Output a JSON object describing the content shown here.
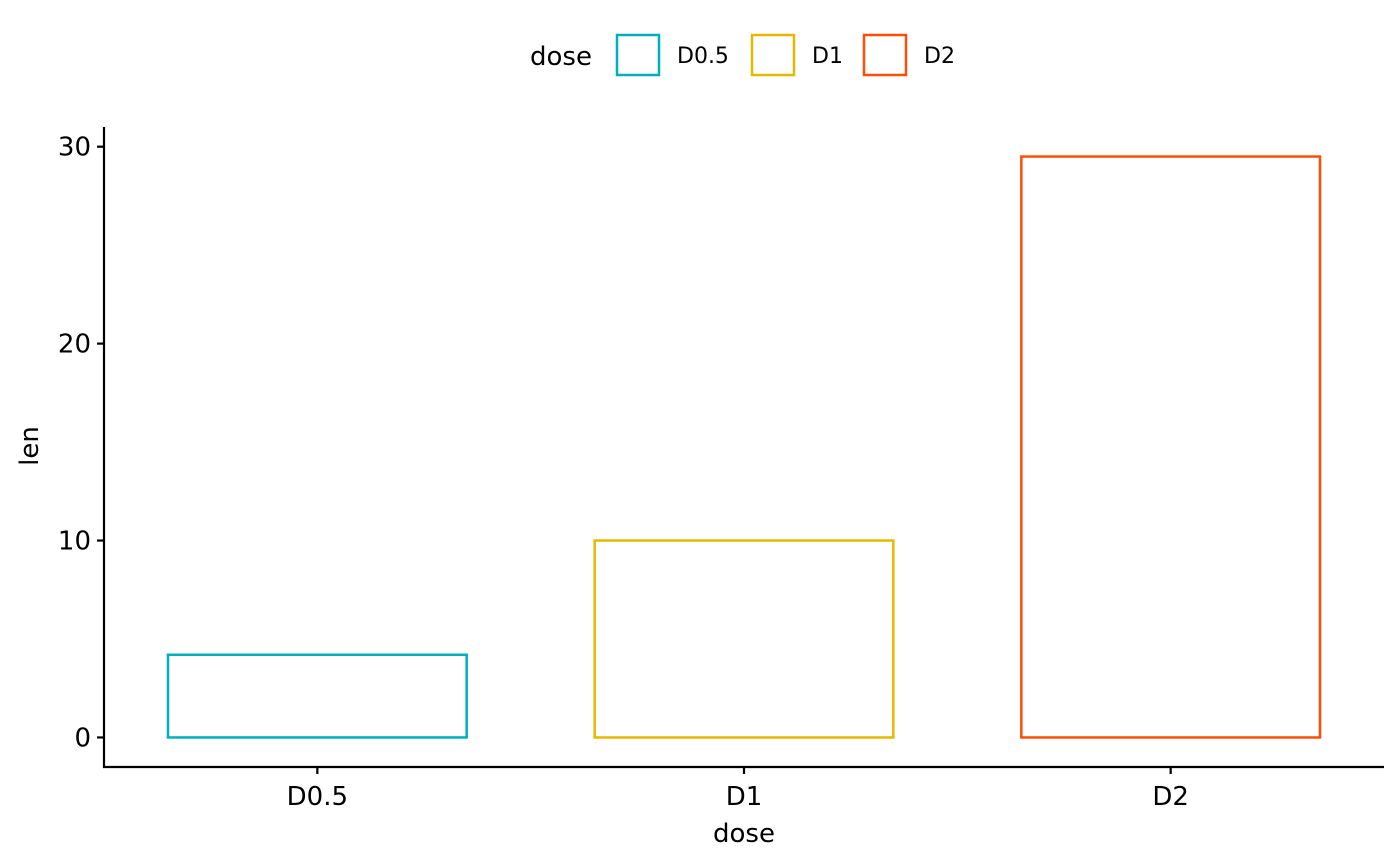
{
  "chart_data": {
    "type": "bar",
    "title": "",
    "xlabel": "dose",
    "ylabel": "len",
    "categories": [
      "D0.5",
      "D1",
      "D2"
    ],
    "values": [
      4.2,
      10.0,
      29.5
    ],
    "colors": [
      "#00AFBB",
      "#E7B800",
      "#FC4E07"
    ],
    "fill": "none",
    "ylim": [
      -1.5,
      31
    ],
    "yticks": [
      0,
      10,
      20,
      30
    ],
    "grid": false,
    "legend": {
      "title": "dose",
      "position": "top",
      "entries": [
        "D0.5",
        "D1",
        "D2"
      ]
    }
  }
}
